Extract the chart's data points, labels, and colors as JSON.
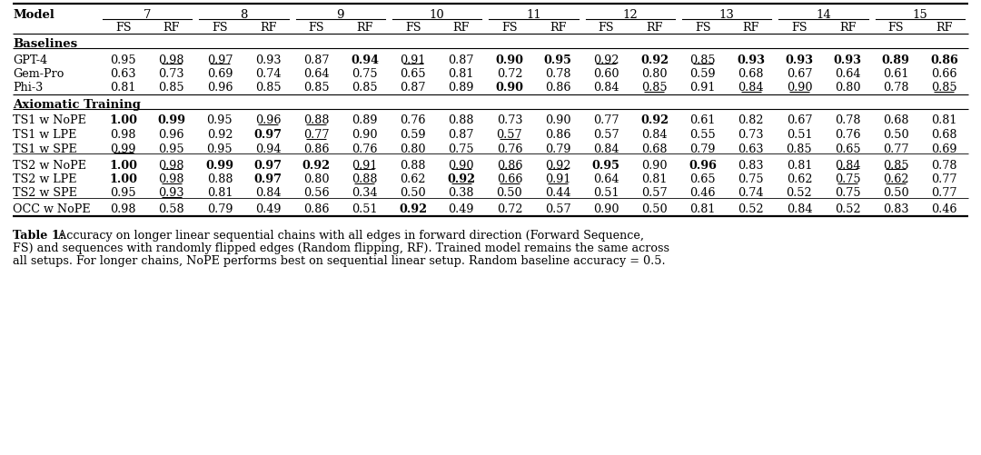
{
  "col_groups": [
    "7",
    "8",
    "9",
    "10",
    "11",
    "12",
    "13",
    "14",
    "15"
  ],
  "sub_cols": [
    "FS",
    "RF"
  ],
  "section1_header": "Baselines",
  "section2_header": "Axiomatic Training",
  "rows": [
    {
      "model": "GPT-4",
      "values": [
        {
          "v": "0.95",
          "bold": false,
          "underline": false
        },
        {
          "v": "0.98",
          "bold": false,
          "underline": true
        },
        {
          "v": "0.97",
          "bold": false,
          "underline": true
        },
        {
          "v": "0.93",
          "bold": false,
          "underline": false
        },
        {
          "v": "0.87",
          "bold": false,
          "underline": false
        },
        {
          "v": "0.94",
          "bold": true,
          "underline": false
        },
        {
          "v": "0.91",
          "bold": false,
          "underline": true
        },
        {
          "v": "0.87",
          "bold": false,
          "underline": false
        },
        {
          "v": "0.90",
          "bold": true,
          "underline": false
        },
        {
          "v": "0.95",
          "bold": true,
          "underline": false
        },
        {
          "v": "0.92",
          "bold": false,
          "underline": true
        },
        {
          "v": "0.92",
          "bold": true,
          "underline": false
        },
        {
          "v": "0.85",
          "bold": false,
          "underline": true
        },
        {
          "v": "0.93",
          "bold": true,
          "underline": false
        },
        {
          "v": "0.93",
          "bold": true,
          "underline": false
        },
        {
          "v": "0.93",
          "bold": true,
          "underline": false
        },
        {
          "v": "0.89",
          "bold": true,
          "underline": false
        },
        {
          "v": "0.86",
          "bold": true,
          "underline": false
        }
      ],
      "section": 1
    },
    {
      "model": "Gem-Pro",
      "values": [
        {
          "v": "0.63",
          "bold": false,
          "underline": false
        },
        {
          "v": "0.73",
          "bold": false,
          "underline": false
        },
        {
          "v": "0.69",
          "bold": false,
          "underline": false
        },
        {
          "v": "0.74",
          "bold": false,
          "underline": false
        },
        {
          "v": "0.64",
          "bold": false,
          "underline": false
        },
        {
          "v": "0.75",
          "bold": false,
          "underline": false
        },
        {
          "v": "0.65",
          "bold": false,
          "underline": false
        },
        {
          "v": "0.81",
          "bold": false,
          "underline": false
        },
        {
          "v": "0.72",
          "bold": false,
          "underline": false
        },
        {
          "v": "0.78",
          "bold": false,
          "underline": false
        },
        {
          "v": "0.60",
          "bold": false,
          "underline": false
        },
        {
          "v": "0.80",
          "bold": false,
          "underline": false
        },
        {
          "v": "0.59",
          "bold": false,
          "underline": false
        },
        {
          "v": "0.68",
          "bold": false,
          "underline": false
        },
        {
          "v": "0.67",
          "bold": false,
          "underline": false
        },
        {
          "v": "0.64",
          "bold": false,
          "underline": false
        },
        {
          "v": "0.61",
          "bold": false,
          "underline": false
        },
        {
          "v": "0.66",
          "bold": false,
          "underline": false
        }
      ],
      "section": 1
    },
    {
      "model": "Phi-3",
      "values": [
        {
          "v": "0.81",
          "bold": false,
          "underline": false
        },
        {
          "v": "0.85",
          "bold": false,
          "underline": false
        },
        {
          "v": "0.96",
          "bold": false,
          "underline": false
        },
        {
          "v": "0.85",
          "bold": false,
          "underline": false
        },
        {
          "v": "0.85",
          "bold": false,
          "underline": false
        },
        {
          "v": "0.85",
          "bold": false,
          "underline": false
        },
        {
          "v": "0.87",
          "bold": false,
          "underline": false
        },
        {
          "v": "0.89",
          "bold": false,
          "underline": false
        },
        {
          "v": "0.90",
          "bold": true,
          "underline": false
        },
        {
          "v": "0.86",
          "bold": false,
          "underline": false
        },
        {
          "v": "0.84",
          "bold": false,
          "underline": false
        },
        {
          "v": "0.85",
          "bold": false,
          "underline": true
        },
        {
          "v": "0.91",
          "bold": false,
          "underline": false
        },
        {
          "v": "0.84",
          "bold": false,
          "underline": true
        },
        {
          "v": "0.90",
          "bold": false,
          "underline": true
        },
        {
          "v": "0.80",
          "bold": false,
          "underline": false
        },
        {
          "v": "0.78",
          "bold": false,
          "underline": false
        },
        {
          "v": "0.85",
          "bold": false,
          "underline": true
        }
      ],
      "section": 1
    },
    {
      "model": "TS1 w NoPE",
      "values": [
        {
          "v": "1.00",
          "bold": true,
          "underline": false
        },
        {
          "v": "0.99",
          "bold": true,
          "underline": false
        },
        {
          "v": "0.95",
          "bold": false,
          "underline": false
        },
        {
          "v": "0.96",
          "bold": false,
          "underline": true
        },
        {
          "v": "0.88",
          "bold": false,
          "underline": true
        },
        {
          "v": "0.89",
          "bold": false,
          "underline": false
        },
        {
          "v": "0.76",
          "bold": false,
          "underline": false
        },
        {
          "v": "0.88",
          "bold": false,
          "underline": false
        },
        {
          "v": "0.73",
          "bold": false,
          "underline": false
        },
        {
          "v": "0.90",
          "bold": false,
          "underline": false
        },
        {
          "v": "0.77",
          "bold": false,
          "underline": false
        },
        {
          "v": "0.92",
          "bold": true,
          "underline": false
        },
        {
          "v": "0.61",
          "bold": false,
          "underline": false
        },
        {
          "v": "0.82",
          "bold": false,
          "underline": false
        },
        {
          "v": "0.67",
          "bold": false,
          "underline": false
        },
        {
          "v": "0.78",
          "bold": false,
          "underline": false
        },
        {
          "v": "0.68",
          "bold": false,
          "underline": false
        },
        {
          "v": "0.81",
          "bold": false,
          "underline": false
        }
      ],
      "section": 2
    },
    {
      "model": "TS1 w LPE",
      "values": [
        {
          "v": "0.98",
          "bold": false,
          "underline": false
        },
        {
          "v": "0.96",
          "bold": false,
          "underline": false
        },
        {
          "v": "0.92",
          "bold": false,
          "underline": false
        },
        {
          "v": "0.97",
          "bold": true,
          "underline": false
        },
        {
          "v": "0.77",
          "bold": false,
          "underline": true
        },
        {
          "v": "0.90",
          "bold": false,
          "underline": false
        },
        {
          "v": "0.59",
          "bold": false,
          "underline": false
        },
        {
          "v": "0.87",
          "bold": false,
          "underline": false
        },
        {
          "v": "0.57",
          "bold": false,
          "underline": true
        },
        {
          "v": "0.86",
          "bold": false,
          "underline": false
        },
        {
          "v": "0.57",
          "bold": false,
          "underline": false
        },
        {
          "v": "0.84",
          "bold": false,
          "underline": false
        },
        {
          "v": "0.55",
          "bold": false,
          "underline": false
        },
        {
          "v": "0.73",
          "bold": false,
          "underline": false
        },
        {
          "v": "0.51",
          "bold": false,
          "underline": false
        },
        {
          "v": "0.76",
          "bold": false,
          "underline": false
        },
        {
          "v": "0.50",
          "bold": false,
          "underline": false
        },
        {
          "v": "0.68",
          "bold": false,
          "underline": false
        }
      ],
      "section": 2
    },
    {
      "model": "TS1 w SPE",
      "values": [
        {
          "v": "0.99",
          "bold": false,
          "underline": true
        },
        {
          "v": "0.95",
          "bold": false,
          "underline": false
        },
        {
          "v": "0.95",
          "bold": false,
          "underline": false
        },
        {
          "v": "0.94",
          "bold": false,
          "underline": false
        },
        {
          "v": "0.86",
          "bold": false,
          "underline": false
        },
        {
          "v": "0.76",
          "bold": false,
          "underline": false
        },
        {
          "v": "0.80",
          "bold": false,
          "underline": false
        },
        {
          "v": "0.75",
          "bold": false,
          "underline": false
        },
        {
          "v": "0.76",
          "bold": false,
          "underline": false
        },
        {
          "v": "0.79",
          "bold": false,
          "underline": false
        },
        {
          "v": "0.84",
          "bold": false,
          "underline": false
        },
        {
          "v": "0.68",
          "bold": false,
          "underline": false
        },
        {
          "v": "0.79",
          "bold": false,
          "underline": false
        },
        {
          "v": "0.63",
          "bold": false,
          "underline": false
        },
        {
          "v": "0.85",
          "bold": false,
          "underline": false
        },
        {
          "v": "0.65",
          "bold": false,
          "underline": false
        },
        {
          "v": "0.77",
          "bold": false,
          "underline": false
        },
        {
          "v": "0.69",
          "bold": false,
          "underline": false
        }
      ],
      "section": 2
    },
    {
      "model": "TS2 w NoPE",
      "values": [
        {
          "v": "1.00",
          "bold": true,
          "underline": false
        },
        {
          "v": "0.98",
          "bold": false,
          "underline": true
        },
        {
          "v": "0.99",
          "bold": true,
          "underline": false
        },
        {
          "v": "0.97",
          "bold": true,
          "underline": false
        },
        {
          "v": "0.92",
          "bold": true,
          "underline": false
        },
        {
          "v": "0.91",
          "bold": false,
          "underline": true
        },
        {
          "v": "0.88",
          "bold": false,
          "underline": false
        },
        {
          "v": "0.90",
          "bold": false,
          "underline": true
        },
        {
          "v": "0.86",
          "bold": false,
          "underline": true
        },
        {
          "v": "0.92",
          "bold": false,
          "underline": true
        },
        {
          "v": "0.95",
          "bold": true,
          "underline": false
        },
        {
          "v": "0.90",
          "bold": false,
          "underline": false
        },
        {
          "v": "0.96",
          "bold": true,
          "underline": false
        },
        {
          "v": "0.83",
          "bold": false,
          "underline": false
        },
        {
          "v": "0.81",
          "bold": false,
          "underline": false
        },
        {
          "v": "0.84",
          "bold": false,
          "underline": true
        },
        {
          "v": "0.85",
          "bold": false,
          "underline": true
        },
        {
          "v": "0.78",
          "bold": false,
          "underline": false
        }
      ],
      "section": 2,
      "sep_above": true
    },
    {
      "model": "TS2 w LPE",
      "values": [
        {
          "v": "1.00",
          "bold": true,
          "underline": false
        },
        {
          "v": "0.98",
          "bold": false,
          "underline": true
        },
        {
          "v": "0.88",
          "bold": false,
          "underline": false
        },
        {
          "v": "0.97",
          "bold": true,
          "underline": false
        },
        {
          "v": "0.80",
          "bold": false,
          "underline": false
        },
        {
          "v": "0.88",
          "bold": false,
          "underline": true
        },
        {
          "v": "0.62",
          "bold": false,
          "underline": false
        },
        {
          "v": "0.92",
          "bold": true,
          "underline": true
        },
        {
          "v": "0.66",
          "bold": false,
          "underline": true
        },
        {
          "v": "0.91",
          "bold": false,
          "underline": true
        },
        {
          "v": "0.64",
          "bold": false,
          "underline": false
        },
        {
          "v": "0.81",
          "bold": false,
          "underline": false
        },
        {
          "v": "0.65",
          "bold": false,
          "underline": false
        },
        {
          "v": "0.75",
          "bold": false,
          "underline": false
        },
        {
          "v": "0.62",
          "bold": false,
          "underline": false
        },
        {
          "v": "0.75",
          "bold": false,
          "underline": true
        },
        {
          "v": "0.62",
          "bold": false,
          "underline": true
        },
        {
          "v": "0.77",
          "bold": false,
          "underline": false
        }
      ],
      "section": 2
    },
    {
      "model": "TS2 w SPE",
      "values": [
        {
          "v": "0.95",
          "bold": false,
          "underline": false
        },
        {
          "v": "0.93",
          "bold": false,
          "underline": true
        },
        {
          "v": "0.81",
          "bold": false,
          "underline": false
        },
        {
          "v": "0.84",
          "bold": false,
          "underline": false
        },
        {
          "v": "0.56",
          "bold": false,
          "underline": false
        },
        {
          "v": "0.34",
          "bold": false,
          "underline": false
        },
        {
          "v": "0.50",
          "bold": false,
          "underline": false
        },
        {
          "v": "0.38",
          "bold": false,
          "underline": false
        },
        {
          "v": "0.50",
          "bold": false,
          "underline": false
        },
        {
          "v": "0.44",
          "bold": false,
          "underline": false
        },
        {
          "v": "0.51",
          "bold": false,
          "underline": false
        },
        {
          "v": "0.57",
          "bold": false,
          "underline": false
        },
        {
          "v": "0.46",
          "bold": false,
          "underline": false
        },
        {
          "v": "0.74",
          "bold": false,
          "underline": false
        },
        {
          "v": "0.52",
          "bold": false,
          "underline": false
        },
        {
          "v": "0.75",
          "bold": false,
          "underline": false
        },
        {
          "v": "0.50",
          "bold": false,
          "underline": false
        },
        {
          "v": "0.77",
          "bold": false,
          "underline": false
        }
      ],
      "section": 2
    },
    {
      "model": "OCC w NoPE",
      "values": [
        {
          "v": "0.98",
          "bold": false,
          "underline": false
        },
        {
          "v": "0.58",
          "bold": false,
          "underline": false
        },
        {
          "v": "0.79",
          "bold": false,
          "underline": false
        },
        {
          "v": "0.49",
          "bold": false,
          "underline": false
        },
        {
          "v": "0.86",
          "bold": false,
          "underline": false
        },
        {
          "v": "0.51",
          "bold": false,
          "underline": false
        },
        {
          "v": "0.92",
          "bold": true,
          "underline": false
        },
        {
          "v": "0.49",
          "bold": false,
          "underline": false
        },
        {
          "v": "0.72",
          "bold": false,
          "underline": false
        },
        {
          "v": "0.57",
          "bold": false,
          "underline": false
        },
        {
          "v": "0.90",
          "bold": false,
          "underline": false
        },
        {
          "v": "0.50",
          "bold": false,
          "underline": false
        },
        {
          "v": "0.81",
          "bold": false,
          "underline": false
        },
        {
          "v": "0.52",
          "bold": false,
          "underline": false
        },
        {
          "v": "0.84",
          "bold": false,
          "underline": false
        },
        {
          "v": "0.52",
          "bold": false,
          "underline": false
        },
        {
          "v": "0.83",
          "bold": false,
          "underline": false
        },
        {
          "v": "0.46",
          "bold": false,
          "underline": false
        }
      ],
      "section": 2,
      "sep_above": true
    }
  ],
  "caption_bold": "Table 1:",
  "caption_rest": " Accuracy on longer linear sequential chains with all edges in forward direction (Forward Sequence,\nFS) and sequences with randomly flipped edges (Random flipping, RF). Trained model remains the same across\nall setups. For longer chains, NoPE performs best on sequential linear setup. Random baseline accuracy = 0.5.",
  "bg_color": "#ffffff",
  "text_color": "#000000"
}
